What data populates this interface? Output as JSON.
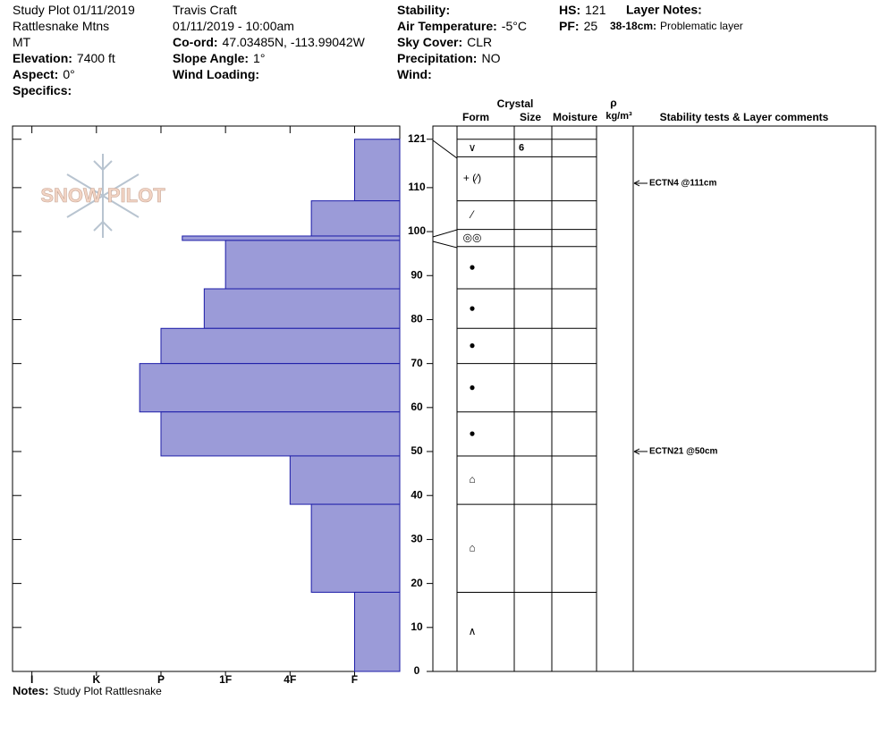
{
  "header": {
    "columns": [
      [
        {
          "value": "Study Plot 01/11/2019"
        },
        {
          "value": "Rattlesnake Mtns"
        },
        {
          "value": "MT"
        },
        {
          "label": "Elevation:",
          "value": "7400 ft"
        },
        {
          "label": "Aspect:",
          "value": "0°"
        },
        {
          "label": "Specifics:"
        }
      ],
      [
        {
          "value": "Travis  Craft"
        },
        {
          "value": "01/11/2019 - 10:00am"
        },
        {
          "label": "Co-ord:",
          "value": "47.03485N, -113.99042W"
        },
        {
          "label": "Slope Angle:",
          "value": "1°"
        },
        {
          "label": "Wind Loading:"
        }
      ],
      [
        {
          "label": "Stability:"
        },
        {
          "label": "Air Temperature:",
          "value": "-5°C"
        },
        {
          "label": "Sky Cover:",
          "value": "CLR"
        },
        {
          "label": "Precipitation:",
          "value": "NO"
        },
        {
          "label": "Wind:"
        }
      ],
      [
        {
          "label": "HS:",
          "value": "121"
        },
        {
          "label": "PF:",
          "value": "25"
        }
      ]
    ],
    "layer_notes": {
      "title": "Layer Notes:",
      "items": [
        {
          "label": "38-18cm:",
          "value": "Problematic layer"
        }
      ]
    }
  },
  "logo": "SNOW PILOT",
  "table_headers": {
    "crystal": "Crystal",
    "form": "Form",
    "size": "Size",
    "moisture": "Moisture",
    "rho": "ρ",
    "density_unit": "kg/m³",
    "comments": "Stability tests & Layer comments"
  },
  "notes": {
    "label": "Notes:",
    "value": "Study Plot Rattlesnake"
  },
  "chart_data": {
    "type": "bar",
    "orientation": "horizontal",
    "color": "#9b9bd8",
    "edge_color": "#1c1ca8",
    "xlim": [
      6.3,
      0.3
    ],
    "xticks": [
      {
        "value": 6,
        "label": "I"
      },
      {
        "value": 5,
        "label": "K"
      },
      {
        "value": 4,
        "label": "P"
      },
      {
        "value": 3,
        "label": "1F"
      },
      {
        "value": 2,
        "label": "4F"
      },
      {
        "value": 1,
        "label": "F"
      }
    ],
    "ylim": [
      0,
      124
    ],
    "yticks": [
      0,
      10,
      20,
      30,
      40,
      50,
      60,
      70,
      80,
      90,
      100,
      110,
      121
    ],
    "layers": [
      {
        "top": 121,
        "bottom": 107,
        "hardness": 1
      },
      {
        "top": 107,
        "bottom": 99,
        "hardness": 1.67
      },
      {
        "top": 99,
        "bottom": 98,
        "hardness": 3.67
      },
      {
        "top": 98,
        "bottom": 87,
        "hardness": 3
      },
      {
        "top": 87,
        "bottom": 78,
        "hardness": 3.33
      },
      {
        "top": 78,
        "bottom": 70,
        "hardness": 4
      },
      {
        "top": 70,
        "bottom": 59,
        "hardness": 4.33
      },
      {
        "top": 59,
        "bottom": 49,
        "hardness": 4
      },
      {
        "top": 49,
        "bottom": 38,
        "hardness": 2
      },
      {
        "top": 38,
        "bottom": 18,
        "hardness": 1.67
      },
      {
        "top": 18,
        "bottom": 0,
        "hardness": 1
      }
    ],
    "grains": [
      {
        "top": 121,
        "bottom": 117,
        "form": "∨",
        "size": 6
      },
      {
        "top": 117,
        "bottom": 107,
        "form": "+ (⁄)"
      },
      {
        "top": 107,
        "bottom": 100.5,
        "form": "⁄"
      },
      {
        "top": 100.5,
        "bottom": 96.6,
        "form": "◎◎"
      },
      {
        "top": 96.6,
        "bottom": 87,
        "form": "●"
      },
      {
        "top": 87,
        "bottom": 78,
        "form": "●"
      },
      {
        "top": 78,
        "bottom": 70,
        "form": "●"
      },
      {
        "top": 70,
        "bottom": 59,
        "form": "●"
      },
      {
        "top": 59,
        "bottom": 49,
        "form": "●"
      },
      {
        "top": 49,
        "bottom": 38,
        "form": "⌂"
      },
      {
        "top": 38,
        "bottom": 18,
        "form": "⌂"
      },
      {
        "top": 18,
        "bottom": 0,
        "form": "∧"
      }
    ],
    "tests": [
      {
        "depth": 111,
        "label": "ECTN4 @111cm"
      },
      {
        "depth": 50,
        "label": "ECTN21 @50cm"
      }
    ]
  }
}
